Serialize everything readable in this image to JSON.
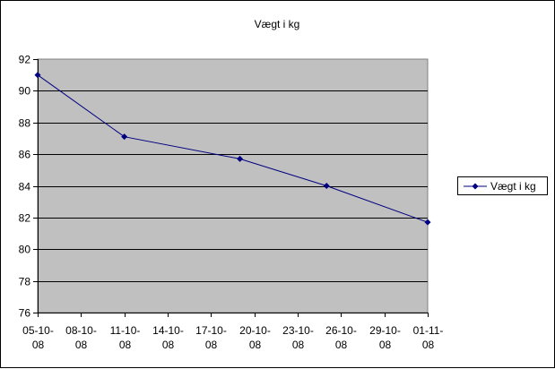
{
  "colors": {
    "plot_area": "#c0c0c0",
    "series_line": "#000080",
    "gridline": "#000000",
    "background": "#ffffff"
  },
  "chart_data": {
    "type": "line",
    "title": "Vægt i kg",
    "xlabel": "",
    "ylabel": "",
    "x_ticks": [
      "05-10-08",
      "08-10-08",
      "11-10-08",
      "14-10-08",
      "17-10-08",
      "20-10-08",
      "23-10-08",
      "26-10-08",
      "29-10-08",
      "01-11-08"
    ],
    "x_range": [
      "2008-10-05",
      "2008-11-01"
    ],
    "ylim": [
      76,
      92
    ],
    "y_ticks": [
      76,
      78,
      80,
      82,
      84,
      86,
      88,
      90,
      92
    ],
    "grid": true,
    "legend_position": "right",
    "series": [
      {
        "name": "Vægt i kg",
        "marker": "diamond",
        "points": [
          {
            "x": "2008-10-05",
            "y": 91.0
          },
          {
            "x": "2008-10-11",
            "y": 87.1
          },
          {
            "x": "2008-10-19",
            "y": 85.7
          },
          {
            "x": "2008-10-25",
            "y": 84.0
          },
          {
            "x": "2008-11-01",
            "y": 81.7
          }
        ]
      }
    ]
  }
}
